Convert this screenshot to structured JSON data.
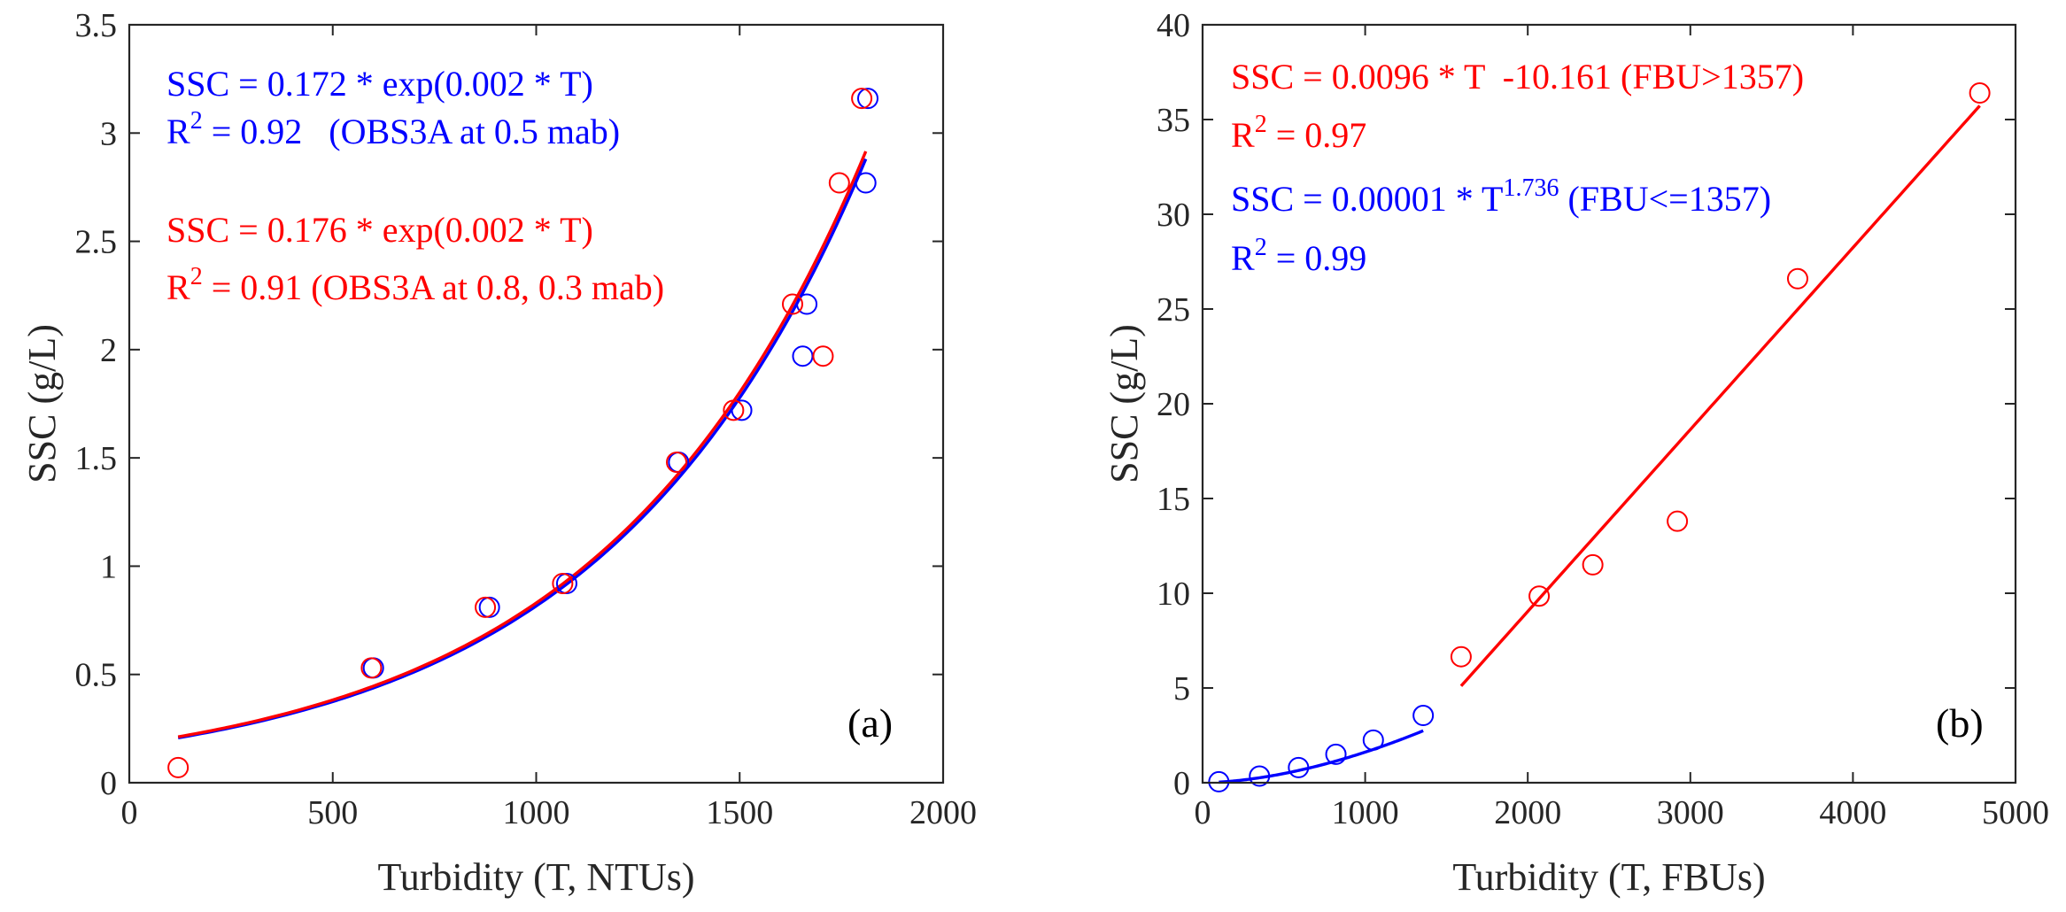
{
  "colors": {
    "blue": "#0000ff",
    "red": "#ff0000",
    "axis": "#262626"
  },
  "chart_data": [
    {
      "id": "a",
      "type": "scatter",
      "panel_label": "(a)",
      "xlabel": "Turbidity (T, NTUs)",
      "ylabel": "SSC (g/L)",
      "xlim": [
        0,
        2000
      ],
      "ylim": [
        0,
        3.5
      ],
      "xticks": [
        0,
        500,
        1000,
        1500,
        2000
      ],
      "yticks": [
        0,
        0.5,
        1,
        1.5,
        2,
        2.5,
        3,
        3.5
      ],
      "xtick_labels": [
        "0",
        "500",
        "1000",
        "1500",
        "2000"
      ],
      "ytick_labels": [
        "0",
        "0.5",
        "1",
        "1.5",
        "2",
        "2.5",
        "3",
        "3.5"
      ],
      "equations": [
        {
          "color": "blue",
          "line1": "SSC = 0.172 * exp(0.002 * T)",
          "r2_prefix": "R",
          "r2_sup": "2",
          "r2_rest": " = 0.92   (OBS3A at 0.5 mab)"
        },
        {
          "color": "red",
          "line1": "SSC = 0.176 * exp(0.002 * T)",
          "r2_prefix": "R",
          "r2_sup": "2",
          "r2_rest": " = 0.91 (OBS3A at 0.8, 0.3 mab)"
        }
      ],
      "series": [
        {
          "name": "OBS3A at 0.5 mab",
          "color": "blue",
          "points": [
            [
              600,
              0.53
            ],
            [
              885,
              0.81
            ],
            [
              1075,
              0.92
            ],
            [
              1350,
              1.48
            ],
            [
              1505,
              1.72
            ],
            [
              1655,
              1.97
            ],
            [
              1665,
              2.21
            ],
            [
              1810,
              2.77
            ],
            [
              1815,
              3.16
            ]
          ],
          "fit": {
            "kind": "exp",
            "a": 0.172,
            "b": 0.001557,
            "x_range": [
              120,
              1810
            ]
          }
        },
        {
          "name": "OBS3A at 0.8, 0.3 mab",
          "color": "red",
          "points": [
            [
              120,
              0.07
            ],
            [
              595,
              0.53
            ],
            [
              875,
              0.81
            ],
            [
              1065,
              0.92
            ],
            [
              1345,
              1.48
            ],
            [
              1485,
              1.72
            ],
            [
              1630,
              2.21
            ],
            [
              1705,
              1.97
            ],
            [
              1745,
              2.77
            ],
            [
              1800,
              3.16
            ]
          ],
          "fit": {
            "kind": "exp",
            "a": 0.176,
            "b": 0.001551,
            "x_range": [
              120,
              1810
            ]
          }
        }
      ]
    },
    {
      "id": "b",
      "type": "scatter",
      "panel_label": "(b)",
      "xlabel": "Turbidity (T, FBUs)",
      "ylabel": "SSC (g/L)",
      "xlim": [
        0,
        5000
      ],
      "ylim": [
        0,
        40
      ],
      "xticks": [
        0,
        1000,
        2000,
        3000,
        4000,
        5000
      ],
      "yticks": [
        0,
        5,
        10,
        15,
        20,
        25,
        30,
        35,
        40
      ],
      "xtick_labels": [
        "0",
        "1000",
        "2000",
        "3000",
        "4000",
        "5000"
      ],
      "ytick_labels": [
        "0",
        "5",
        "10",
        "15",
        "20",
        "25",
        "30",
        "35",
        "40"
      ],
      "equations": [
        {
          "color": "red",
          "line1": "SSC = 0.0096 * T  -10.161 (FBU>1357)",
          "r2_prefix": "R",
          "r2_sup": "2",
          "r2_rest": " = 0.97"
        },
        {
          "color": "blue",
          "line1_pre": "SSC = 0.00001 * T",
          "line1_sup": "1.736",
          "line1_post": " (FBU<=1357)",
          "r2_prefix": "R",
          "r2_sup": "2",
          "r2_rest": " = 0.99"
        }
      ],
      "series": [
        {
          "name": "FBU<=1357",
          "color": "blue",
          "points": [
            [
              100,
              0.05
            ],
            [
              350,
              0.35
            ],
            [
              590,
              0.8
            ],
            [
              820,
              1.5
            ],
            [
              1050,
              2.25
            ],
            [
              1357,
              3.55
            ]
          ],
          "fit": {
            "kind": "power",
            "a": 1e-05,
            "b": 1.736,
            "x_range": [
              100,
              1357
            ]
          }
        },
        {
          "name": "FBU>1357",
          "color": "red",
          "points": [
            [
              1590,
              6.65
            ],
            [
              2070,
              9.85
            ],
            [
              2400,
              11.5
            ],
            [
              2920,
              13.8
            ],
            [
              3660,
              26.6
            ],
            [
              4780,
              36.4
            ]
          ],
          "fit": {
            "kind": "linear",
            "a": 0.0096,
            "b": -10.161,
            "x_range": [
              1590,
              4780
            ]
          }
        }
      ]
    }
  ]
}
